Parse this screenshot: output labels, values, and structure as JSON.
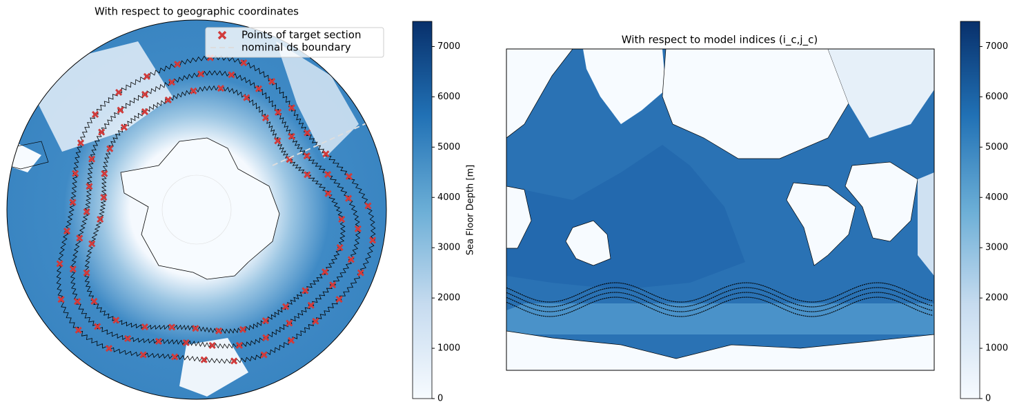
{
  "chart_data": [
    {
      "type": "map",
      "title": "With respect to geographic coordinates",
      "legend": "upper right",
      "series": [
        {
          "name": "Points of target section",
          "color": "#d13b3b"
        },
        {
          "name": "nominal ds boundary",
          "color": "#dddddd"
        }
      ],
      "colorbar": {
        "label": "Sea Floor Depth [m]",
        "lim": [
          0,
          7500
        ],
        "ticks": [
          0,
          1000,
          2000,
          3000,
          4000,
          5000,
          6000,
          7000
        ]
      }
    },
    {
      "type": "map",
      "title": "With respect to model indices (i_c,j_c)",
      "colorbar": {
        "lim": [
          0,
          7500
        ],
        "ticks": [
          0,
          1000,
          2000,
          3000,
          4000,
          5000,
          6000,
          7000
        ]
      }
    }
  ]
}
